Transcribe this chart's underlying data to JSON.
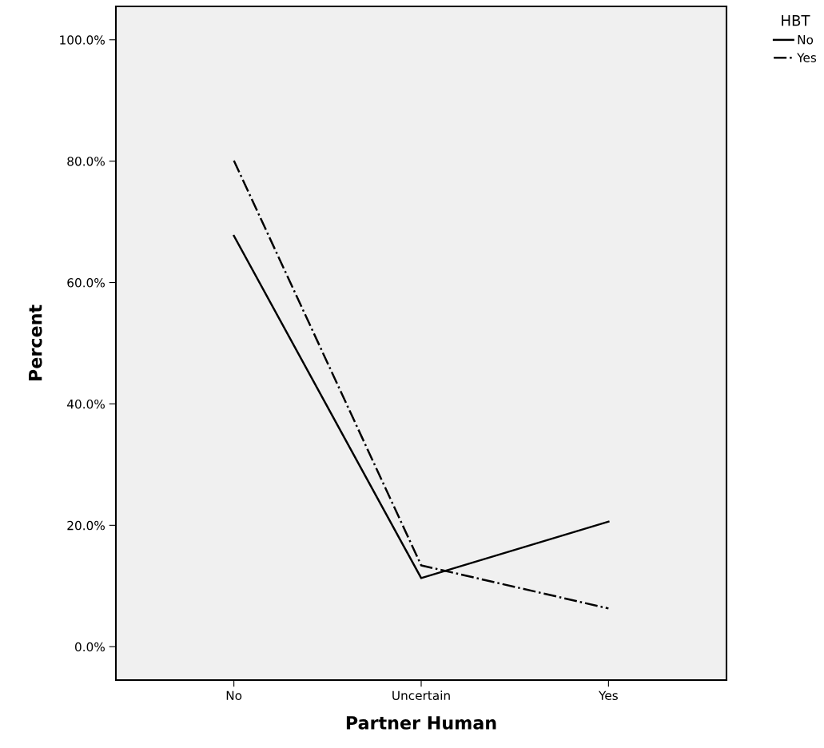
{
  "chart_data": {
    "type": "line",
    "xlabel": "Partner Human",
    "ylabel": "Percent",
    "legend_title": "HBT",
    "categories": [
      "No",
      "Uncertain",
      "Yes"
    ],
    "series": [
      {
        "name": "No",
        "color": "#000000",
        "values": [
          67.7,
          11.3,
          20.6
        ],
        "line_style": "solid"
      },
      {
        "name": "Yes",
        "color": "#000000",
        "values": [
          80.1,
          13.4,
          6.3
        ],
        "line_style": "dashdot"
      }
    ],
    "ylim": [
      -5.5,
      105.5
    ],
    "yticks": [
      {
        "value": 0,
        "label": "0.0%"
      },
      {
        "value": 20,
        "label": "20.0%"
      },
      {
        "value": 40,
        "label": "40.0%"
      },
      {
        "value": 60,
        "label": "60.0%"
      },
      {
        "value": 80,
        "label": "80.0%"
      },
      {
        "value": 100,
        "label": "100.0%"
      }
    ],
    "grid": false,
    "legend": "top right",
    "marker": "none"
  }
}
